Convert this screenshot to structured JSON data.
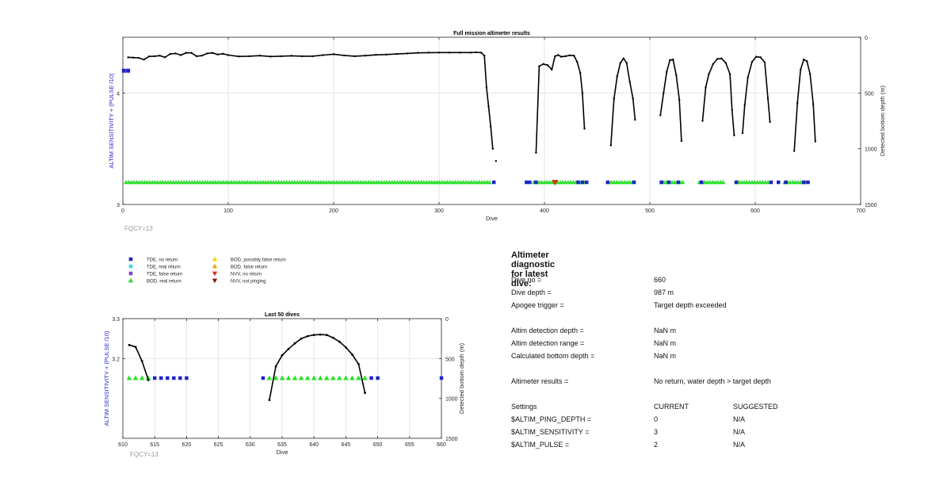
{
  "colors": {
    "axis": "#262626",
    "grid": "#e6e6e6",
    "left_axis_label": "#1f1fd0",
    "trace": "#000000",
    "tde_no_return": "#1e24c8",
    "tde_real_return": "#3fd7e8",
    "tde_false_return": "#8a3fd0",
    "bod_real_return": "#2ee02e",
    "bod_possibly_false": "#f5d20a",
    "bod_false_return": "#f5a01a",
    "nvv_no_return": "#e03010",
    "nvv_not_pinging": "#8b1010",
    "fqcy": "#9a9a9a"
  },
  "chart_data": [
    {
      "type": "scatter",
      "title": "Full mission altimeter results",
      "xlabel": "Dive",
      "ylabel_left": "ALTIM SENSITIVITY + (PULSE /10)",
      "ylabel_right": "Detected bottom depth (m)",
      "xlim": [
        0,
        700
      ],
      "x_ticks": [
        0,
        100,
        200,
        300,
        400,
        500,
        600,
        700
      ],
      "ylim_left": [
        3,
        4.5
      ],
      "y_left_ticks": [
        3,
        4
      ],
      "ylim_right": [
        1500,
        0
      ],
      "y_right_ticks": [
        0,
        500,
        1000,
        1500
      ],
      "grid": true,
      "annotation": "FQCY=13",
      "sensitivity_points": [
        {
          "x": 1,
          "y": 4.2
        },
        {
          "x": 5,
          "y": 4.2
        }
      ],
      "depth_trace": [
        [
          5,
          180
        ],
        [
          10,
          183
        ],
        [
          15,
          185
        ],
        [
          20,
          200
        ],
        [
          25,
          172
        ],
        [
          30,
          170
        ],
        [
          35,
          165
        ],
        [
          40,
          180
        ],
        [
          45,
          150
        ],
        [
          50,
          145
        ],
        [
          55,
          160
        ],
        [
          60,
          140
        ],
        [
          65,
          140
        ],
        [
          70,
          170
        ],
        [
          75,
          165
        ],
        [
          80,
          145
        ],
        [
          85,
          140
        ],
        [
          90,
          155
        ],
        [
          95,
          148
        ],
        [
          100,
          160
        ],
        [
          110,
          172
        ],
        [
          120,
          170
        ],
        [
          130,
          165
        ],
        [
          140,
          173
        ],
        [
          150,
          170
        ],
        [
          160,
          166
        ],
        [
          170,
          170
        ],
        [
          180,
          170
        ],
        [
          190,
          160
        ],
        [
          200,
          152
        ],
        [
          210,
          163
        ],
        [
          220,
          170
        ],
        [
          230,
          165
        ],
        [
          240,
          158
        ],
        [
          250,
          155
        ],
        [
          260,
          150
        ],
        [
          270,
          145
        ],
        [
          280,
          140
        ],
        [
          290,
          138
        ],
        [
          300,
          137
        ],
        [
          310,
          137
        ],
        [
          320,
          137
        ],
        [
          330,
          137
        ],
        [
          335,
          135
        ],
        [
          340,
          138
        ],
        [
          343,
          165
        ],
        [
          345,
          450
        ],
        [
          347,
          620
        ],
        [
          349,
          800
        ],
        [
          351,
          1000
        ],
        [
          null,
          null
        ],
        [
          354,
          1110
        ],
        [
          null,
          null
        ],
        [
          392,
          1035
        ],
        [
          395,
          260
        ],
        [
          399,
          240
        ],
        [
          403,
          250
        ],
        [
          407,
          290
        ],
        [
          410,
          170
        ],
        [
          413,
          160
        ],
        [
          416,
          175
        ],
        [
          420,
          170
        ],
        [
          424,
          162
        ],
        [
          428,
          165
        ],
        [
          431,
          220
        ],
        [
          434,
          320
        ],
        [
          436,
          500
        ],
        [
          438,
          820
        ],
        [
          null,
          null
        ],
        [
          463,
          970
        ],
        [
          466,
          550
        ],
        [
          469,
          350
        ],
        [
          472,
          230
        ],
        [
          475,
          190
        ],
        [
          478,
          230
        ],
        [
          481,
          400
        ],
        [
          484,
          550
        ],
        [
          486,
          740
        ],
        [
          null,
          null
        ],
        [
          510,
          700
        ],
        [
          513,
          500
        ],
        [
          516,
          310
        ],
        [
          519,
          205
        ],
        [
          522,
          200
        ],
        [
          525,
          340
        ],
        [
          528,
          560
        ],
        [
          530,
          930
        ],
        [
          null,
          null
        ],
        [
          550,
          750
        ],
        [
          553,
          450
        ],
        [
          556,
          330
        ],
        [
          560,
          240
        ],
        [
          564,
          195
        ],
        [
          568,
          190
        ],
        [
          572,
          230
        ],
        [
          576,
          330
        ],
        [
          578,
          650
        ],
        [
          580,
          880
        ],
        [
          null,
          null
        ],
        [
          588,
          860
        ],
        [
          590,
          610
        ],
        [
          593,
          360
        ],
        [
          597,
          220
        ],
        [
          601,
          175
        ],
        [
          605,
          180
        ],
        [
          609,
          225
        ],
        [
          612,
          550
        ],
        [
          614,
          760
        ],
        [
          null,
          null
        ],
        [
          637,
          1020
        ],
        [
          640,
          590
        ],
        [
          643,
          290
        ],
        [
          646,
          200
        ],
        [
          649,
          215
        ],
        [
          652,
          330
        ],
        [
          655,
          600
        ],
        [
          657,
          935
        ]
      ],
      "tde_no_return_dives": [
        352,
        383,
        386,
        392,
        432,
        436,
        440,
        460,
        485,
        511,
        518,
        527,
        549,
        582,
        615,
        622,
        629,
        646,
        650
      ],
      "bod_real_segments": [
        [
          3,
          350
        ],
        [
          390,
          438
        ],
        [
          461,
          484
        ],
        [
          511,
          531
        ],
        [
          547,
          571
        ],
        [
          582,
          612
        ],
        [
          628,
          648
        ]
      ],
      "nvv_no_return_dives": [
        410
      ]
    },
    {
      "type": "scatter",
      "title": "Last 50 dives",
      "xlabel": "Dive",
      "ylabel_left": "ALTIM SENSITIVITY + (PULSE /10)",
      "ylabel_right": "Detected bottom depth (m)",
      "xlim": [
        610,
        660
      ],
      "x_ticks": [
        610,
        615,
        620,
        625,
        630,
        635,
        640,
        645,
        650,
        655,
        660
      ],
      "ylim_left": [
        3,
        3.3
      ],
      "y_left_ticks": [
        3.2,
        3.3
      ],
      "ylim_right": [
        1500,
        0
      ],
      "y_right_ticks": [
        0,
        500,
        1000,
        1500
      ],
      "grid": true,
      "annotation": "FQCY=13",
      "depth_trace": [
        [
          611,
          330
        ],
        [
          612,
          355
        ],
        [
          613,
          530
        ],
        [
          614,
          770
        ],
        [
          null,
          null
        ],
        [
          633,
          1020
        ],
        [
          634,
          600
        ],
        [
          635,
          460
        ],
        [
          636,
          380
        ],
        [
          637,
          310
        ],
        [
          638,
          250
        ],
        [
          639,
          220
        ],
        [
          640,
          205
        ],
        [
          641,
          200
        ],
        [
          642,
          205
        ],
        [
          643,
          240
        ],
        [
          644,
          290
        ],
        [
          645,
          360
        ],
        [
          646,
          450
        ],
        [
          647,
          570
        ],
        [
          648,
          930
        ]
      ],
      "tde_no_return_dives": [
        615,
        616,
        617,
        618,
        619,
        620,
        632,
        649,
        650,
        660
      ],
      "bod_real_dives": [
        611,
        612,
        613,
        614,
        633,
        634,
        635,
        636,
        637,
        638,
        639,
        640,
        641,
        642,
        643,
        644,
        645,
        646,
        647,
        648
      ]
    }
  ],
  "legend": {
    "items": [
      {
        "label": "TDE, no return",
        "marker": "square",
        "color_key": "tde_no_return"
      },
      {
        "label": "TDE, real return",
        "marker": "square",
        "color_key": "tde_real_return"
      },
      {
        "label": "TDE, false return",
        "marker": "square",
        "color_key": "tde_false_return"
      },
      {
        "label": "BOD, real return",
        "marker": "triangle-up",
        "color_key": "bod_real_return"
      },
      {
        "label": "BOD, possibly false return",
        "marker": "triangle-up",
        "color_key": "bod_possibly_false"
      },
      {
        "label": "BOD, false return",
        "marker": "triangle-up",
        "color_key": "bod_false_return"
      },
      {
        "label": "NVV, no return",
        "marker": "triangle-down",
        "color_key": "nvv_no_return"
      },
      {
        "label": "NVV, not pinging",
        "marker": "triangle-down",
        "color_key": "nvv_not_pinging"
      }
    ]
  },
  "diagnostic": {
    "heading": "Altimeter diagnostic for latest dive:",
    "rows": [
      {
        "label": "Dive no =",
        "value": "660"
      },
      {
        "label": "Dive depth =",
        "value": "987 m"
      },
      {
        "label": "Apogee trigger =",
        "value": "Target depth exceeded"
      },
      {
        "label": "Altim detection depth =",
        "value": "NaN m"
      },
      {
        "label": "Altim detection range =",
        "value": "NaN m"
      },
      {
        "label": "Calculated bottom depth =",
        "value": "NaN m"
      },
      {
        "label": "Altimeter results =",
        "value": "No return, water depth > target depth"
      }
    ],
    "settings": {
      "header": {
        "label": "Settings",
        "current": "CURRENT",
        "suggested": "SUGGESTED"
      },
      "rows": [
        {
          "name": "$ALTIM_PING_DEPTH =",
          "current": "0",
          "suggested": "N/A"
        },
        {
          "name": "$ALTIM_SENSITIVITY =",
          "current": "3",
          "suggested": "N/A"
        },
        {
          "name": "$ALTIM_PULSE =",
          "current": "2",
          "suggested": "N/A"
        }
      ]
    }
  }
}
